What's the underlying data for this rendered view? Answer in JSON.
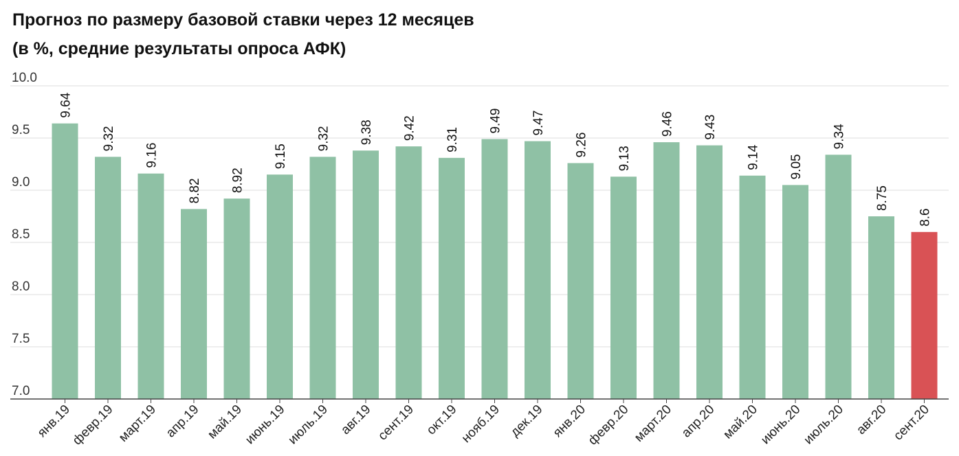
{
  "chart_data": {
    "type": "bar",
    "title": "Прогноз по размеру базовой ставки через 12 месяцев",
    "subtitle": "(в %, средние результаты опроса АФК)",
    "xlabel": "",
    "ylabel": "",
    "ylim": [
      7.0,
      10.0
    ],
    "yticks": [
      "10.0",
      "9.5",
      "9.0",
      "8.5",
      "8.0",
      "7.5",
      "7.0"
    ],
    "grid": true,
    "categories": [
      "янв.19",
      "февр.19",
      "март.19",
      "апр.19",
      "май.19",
      "июнь.19",
      "июль.19",
      "авг.19",
      "сент.19",
      "окт.19",
      "нояб.19",
      "дек.19",
      "янв.20",
      "февр.20",
      "март.20",
      "апр.20",
      "май.20",
      "июнь.20",
      "июль.20",
      "авг.20",
      "сент.20"
    ],
    "values": [
      9.64,
      9.32,
      9.16,
      8.82,
      8.92,
      9.15,
      9.32,
      9.38,
      9.42,
      9.31,
      9.49,
      9.47,
      9.26,
      9.13,
      9.46,
      9.43,
      9.14,
      9.05,
      9.34,
      8.75,
      8.6
    ],
    "value_labels": [
      "9.64",
      "9.32",
      "9.16",
      "8.82",
      "8.92",
      "9.15",
      "9.32",
      "9.38",
      "9.42",
      "9.31",
      "9.49",
      "9.47",
      "9.26",
      "9.13",
      "9.46",
      "9.43",
      "9.14",
      "9.05",
      "9.34",
      "8.75",
      "8.6"
    ],
    "colors": {
      "default": "#8fc1a5",
      "highlight": "#d95255",
      "grid": "#dddddd",
      "axis": "#444444"
    },
    "highlight_index": 20
  }
}
